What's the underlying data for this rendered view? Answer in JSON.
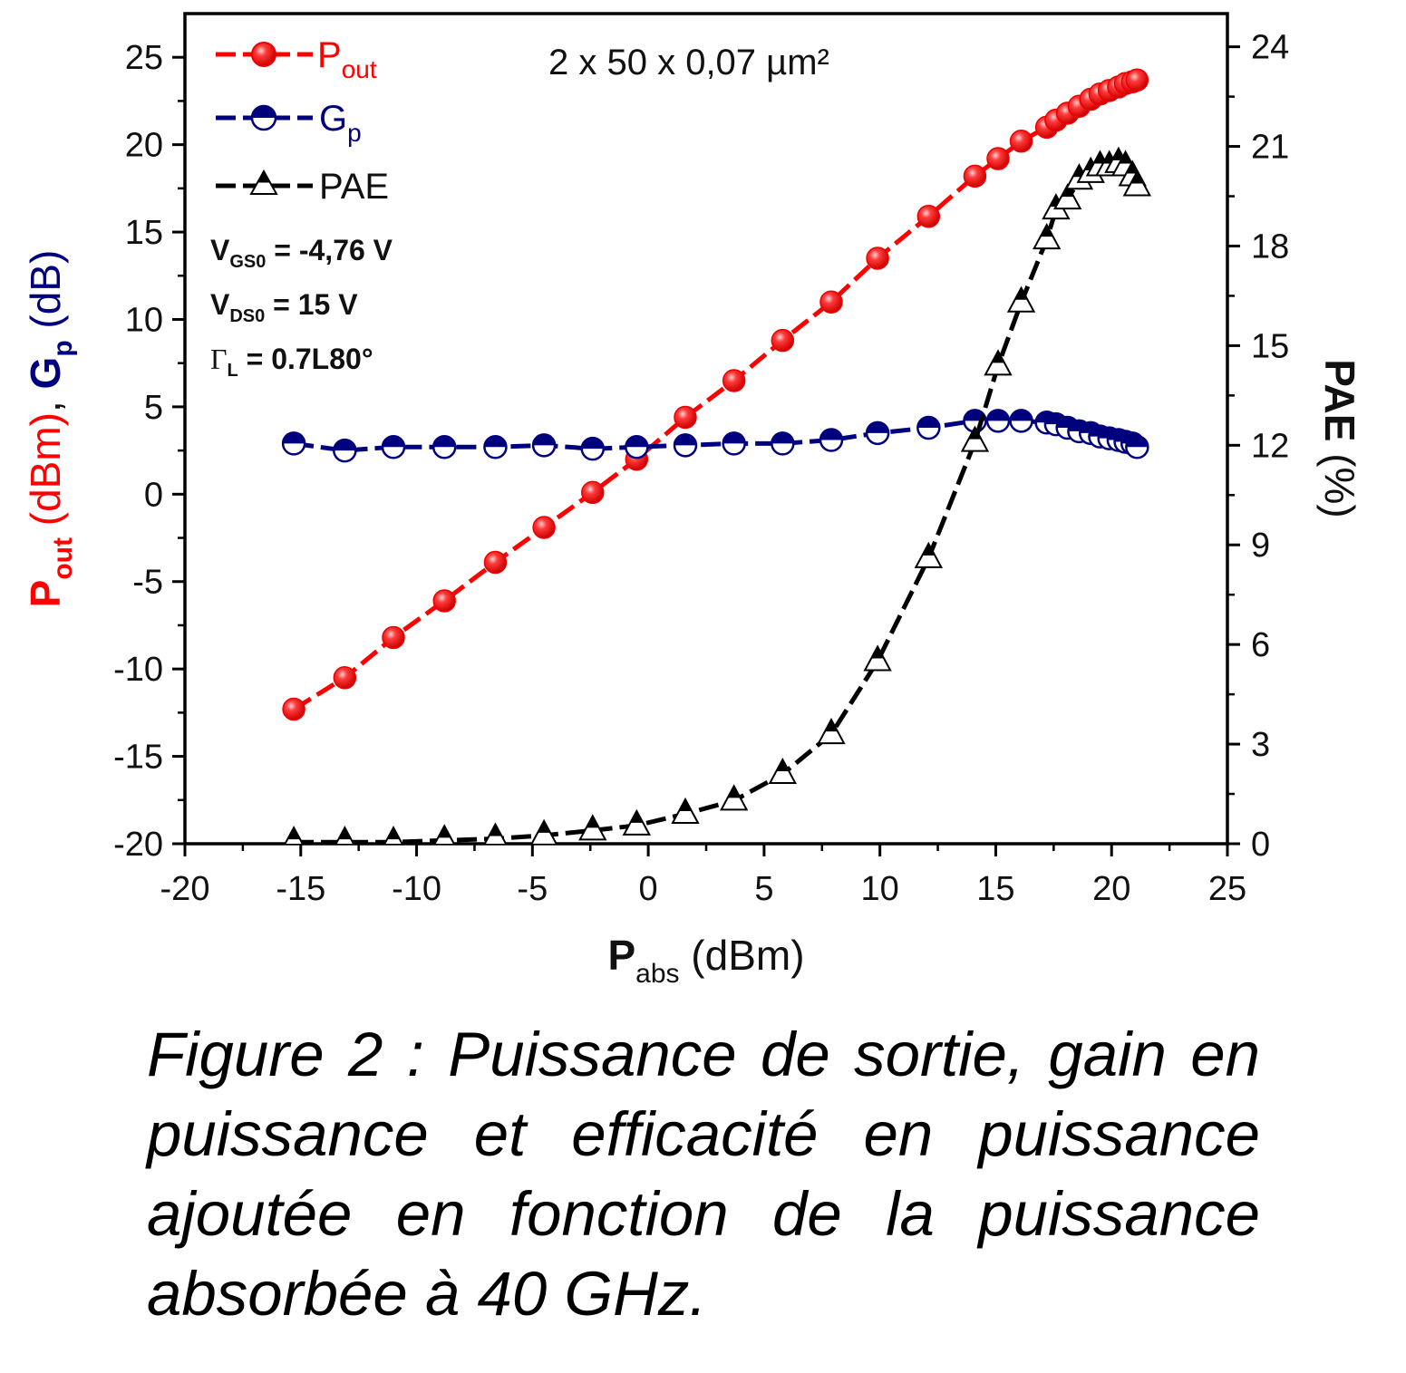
{
  "chart_data": {
    "type": "line",
    "subtitle": "2 x 50 x 0,07 µm²",
    "xlabel": {
      "main": "P",
      "sub": "abs",
      "rest": " (dBm)"
    },
    "ylabel_left": {
      "pout_main": "P",
      "pout_sub": "out",
      "pout_rest": " (dBm)",
      "sep": ", ",
      "gp_main": "G",
      "gp_sub": "p",
      "gp_rest": " (dB)"
    },
    "ylabel_right": {
      "main": "PAE",
      "rest": " (%)"
    },
    "xlim": [
      -20,
      25
    ],
    "ylim_left": [
      -20,
      27.5
    ],
    "ylim_right": [
      0,
      25
    ],
    "x_ticks": [
      "-20",
      "-15",
      "-10",
      "-5",
      "0",
      "5",
      "10",
      "15",
      "20",
      "25"
    ],
    "y_left_ticks": [
      "-20",
      "-15",
      "-10",
      "-5",
      "0",
      "5",
      "10",
      "15",
      "20",
      "25"
    ],
    "y_right_ticks": [
      "0",
      "3",
      "6",
      "9",
      "12",
      "15",
      "18",
      "21",
      "24"
    ],
    "conditions": [
      {
        "main": "V",
        "sub": "GS0",
        "rest": " = -4,76 V"
      },
      {
        "main": "V",
        "sub": "DS0",
        "rest": " = 15 V"
      },
      {
        "main": "Γ",
        "sub": "L",
        "rest": " = 0.7L80°"
      }
    ],
    "series": [
      {
        "name": "Pout",
        "label_main": "P",
        "label_sub": "out",
        "axis": "left",
        "color": "#ff0000",
        "marker": "circle-filled",
        "x": [
          -15.3,
          -13.1,
          -11.0,
          -8.8,
          -6.6,
          -4.5,
          -2.4,
          -0.5,
          1.6,
          3.7,
          5.8,
          7.9,
          9.9,
          12.1,
          14.1,
          15.1,
          16.1,
          17.2,
          17.6,
          18.1,
          18.6,
          19.1,
          19.5,
          19.9,
          20.3,
          20.6,
          20.9,
          21.1
        ],
        "y": [
          -12.3,
          -10.5,
          -8.2,
          -6.1,
          -3.9,
          -1.9,
          0.1,
          2.0,
          4.4,
          6.5,
          8.8,
          11.0,
          13.5,
          15.9,
          18.2,
          19.2,
          20.2,
          21.0,
          21.4,
          21.8,
          22.2,
          22.6,
          22.9,
          23.1,
          23.3,
          23.5,
          23.6,
          23.7
        ]
      },
      {
        "name": "Gp",
        "label_main": "G",
        "label_sub": "p",
        "axis": "left",
        "color": "#00007f",
        "marker": "circle-half",
        "x": [
          -15.3,
          -13.1,
          -11.0,
          -8.8,
          -6.6,
          -4.5,
          -2.4,
          -0.5,
          1.6,
          3.7,
          5.8,
          7.9,
          9.9,
          12.1,
          14.1,
          15.1,
          16.1,
          17.2,
          17.6,
          18.1,
          18.6,
          19.1,
          19.5,
          19.9,
          20.3,
          20.6,
          20.9,
          21.1
        ],
        "y": [
          2.9,
          2.5,
          2.7,
          2.7,
          2.7,
          2.8,
          2.6,
          2.7,
          2.8,
          2.9,
          2.9,
          3.1,
          3.5,
          3.8,
          4.2,
          4.2,
          4.2,
          4.1,
          4.0,
          3.8,
          3.6,
          3.5,
          3.3,
          3.2,
          3.1,
          3.0,
          2.9,
          2.7
        ]
      },
      {
        "name": "PAE",
        "label_main": "PAE",
        "label_sub": "",
        "axis": "right",
        "color": "#000000",
        "marker": "triangle-half",
        "x": [
          -15.3,
          -13.1,
          -11.0,
          -8.8,
          -6.6,
          -4.5,
          -2.4,
          -0.5,
          1.6,
          3.7,
          5.8,
          7.9,
          9.9,
          12.1,
          14.1,
          15.1,
          16.1,
          17.2,
          17.6,
          18.1,
          18.6,
          19.1,
          19.5,
          19.9,
          20.3,
          20.6,
          20.9,
          21.1
        ],
        "y": [
          0.05,
          0.05,
          0.05,
          0.1,
          0.15,
          0.25,
          0.4,
          0.55,
          0.9,
          1.3,
          2.1,
          3.3,
          5.5,
          8.6,
          12.1,
          14.4,
          16.3,
          18.2,
          19.1,
          19.4,
          20.0,
          20.2,
          20.4,
          20.4,
          20.5,
          20.4,
          20.1,
          19.8
        ]
      }
    ]
  },
  "caption": "Figure 2 : Puissance de sortie, gain en puissance et efficacité en puissance ajoutée en fonction de la puissance absorbée à 40 GHz."
}
